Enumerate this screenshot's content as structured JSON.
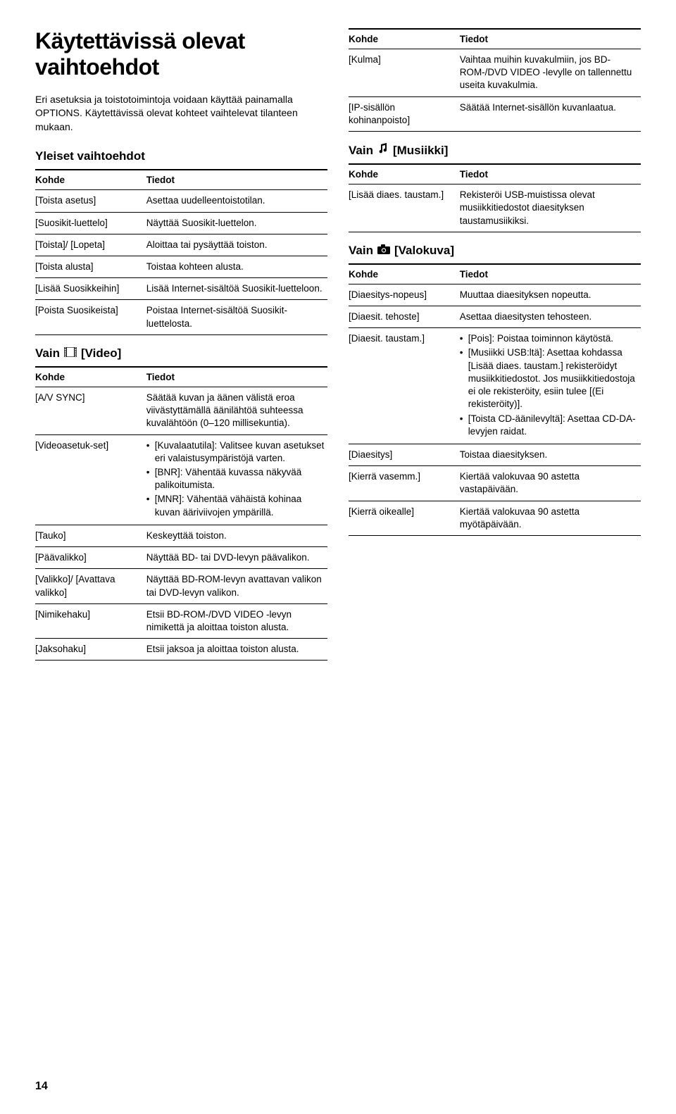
{
  "page_number": "14",
  "title": "Käytettävissä olevat vaihtoehdot",
  "intro": "Eri asetuksia ja toistotoimintoja voidaan käyttää painamalla OPTIONS. Käytettävissä olevat kohteet vaihtelevat tilanteen mukaan.",
  "left": {
    "general_heading": "Yleiset vaihtoehdot",
    "th_kohde": "Kohde",
    "th_tiedot": "Tiedot",
    "general_rows": [
      {
        "k": "[Toista asetus]",
        "t": "Asettaa uudelleentoistotilan."
      },
      {
        "k": "[Suosikit-luettelo]",
        "t": "Näyttää Suosikit-luettelon."
      },
      {
        "k": "[Toista]/ [Lopeta]",
        "t": "Aloittaa tai pysäyttää toiston."
      },
      {
        "k": "[Toista alusta]",
        "t": "Toistaa kohteen alusta."
      },
      {
        "k": "[Lisää Suosikkeihin]",
        "t": "Lisää Internet-sisältöä Suosikit-luetteloon."
      },
      {
        "k": "[Poista Suosikeista]",
        "t": "Poistaa Internet-sisältöä Suosikit-luettelosta."
      }
    ],
    "video_heading": "Vain",
    "video_label": "[Video]",
    "video_rows": [
      {
        "k": "[A/V SYNC]",
        "t": "Säätää kuvan ja äänen välistä eroa viivästyttämällä äänilähtöä suhteessa kuvalähtöön (0–120 millisekuntia)."
      },
      {
        "k": "[Videoasetuk-set]",
        "bullets": [
          "[Kuvalaatutila]: Valitsee kuvan asetukset eri valaistusympäristöjä varten.",
          "[BNR]: Vähentää kuvassa näkyvää palikoitumista.",
          "[MNR]: Vähentää vähäistä kohinaa kuvan ääriviivojen ympärillä."
        ]
      },
      {
        "k": "[Tauko]",
        "t": "Keskeyttää toiston."
      },
      {
        "k": "[Päävalikko]",
        "t": "Näyttää BD- tai DVD-levyn päävalikon."
      },
      {
        "k": "[Valikko]/ [Avattava valikko]",
        "t": "Näyttää BD-ROM-levyn avattavan valikon tai DVD-levyn valikon."
      },
      {
        "k": "[Nimikehaku]",
        "t": "Etsii BD-ROM-/DVD VIDEO -levyn nimikettä ja aloittaa toiston alusta."
      },
      {
        "k": "[Jaksohaku]",
        "t": "Etsii jaksoa ja aloittaa toiston alusta."
      }
    ]
  },
  "right": {
    "th_kohde": "Kohde",
    "th_tiedot": "Tiedot",
    "top_rows": [
      {
        "k": "[Kulma]",
        "t": "Vaihtaa muihin kuvakulmiin, jos BD-ROM-/DVD VIDEO -levylle on tallennettu useita kuvakulmia."
      },
      {
        "k": "[IP-sisällön kohinanpoisto]",
        "t": "Säätää Internet-sisällön kuvanlaatua."
      }
    ],
    "music_heading": "Vain",
    "music_label": "[Musiikki]",
    "music_rows": [
      {
        "k": "[Lisää diaes. taustam.]",
        "t": "Rekisteröi USB-muistissa olevat musiikkitiedostot diaesityksen taustamusiikiksi."
      }
    ],
    "photo_heading": "Vain",
    "photo_label": "[Valokuva]",
    "photo_rows": [
      {
        "k": "[Diaesitys-nopeus]",
        "t": "Muuttaa diaesityksen nopeutta."
      },
      {
        "k": "[Diaesit. tehoste]",
        "t": "Asettaa diaesitysten tehosteen."
      },
      {
        "k": "[Diaesit. taustam.]",
        "bullets": [
          "[Pois]: Poistaa toiminnon käytöstä.",
          "[Musiikki USB:ltä]: Asettaa kohdassa [Lisää diaes. taustam.] rekisteröidyt musiikkitiedostot. Jos musiikkitiedostoja ei ole rekisteröity, esiin tulee [(Ei rekisteröity)].",
          "[Toista CD-äänilevyltä]: Asettaa CD-DA-levyjen raidat."
        ]
      },
      {
        "k": "[Diaesitys]",
        "t": "Toistaa diaesityksen."
      },
      {
        "k": "[Kierrä vasemm.]",
        "t": "Kiertää valokuvaa 90 astetta vastapäivään."
      },
      {
        "k": "[Kierrä oikealle]",
        "t": "Kiertää valokuvaa 90 astetta myötäpäivään."
      }
    ]
  }
}
